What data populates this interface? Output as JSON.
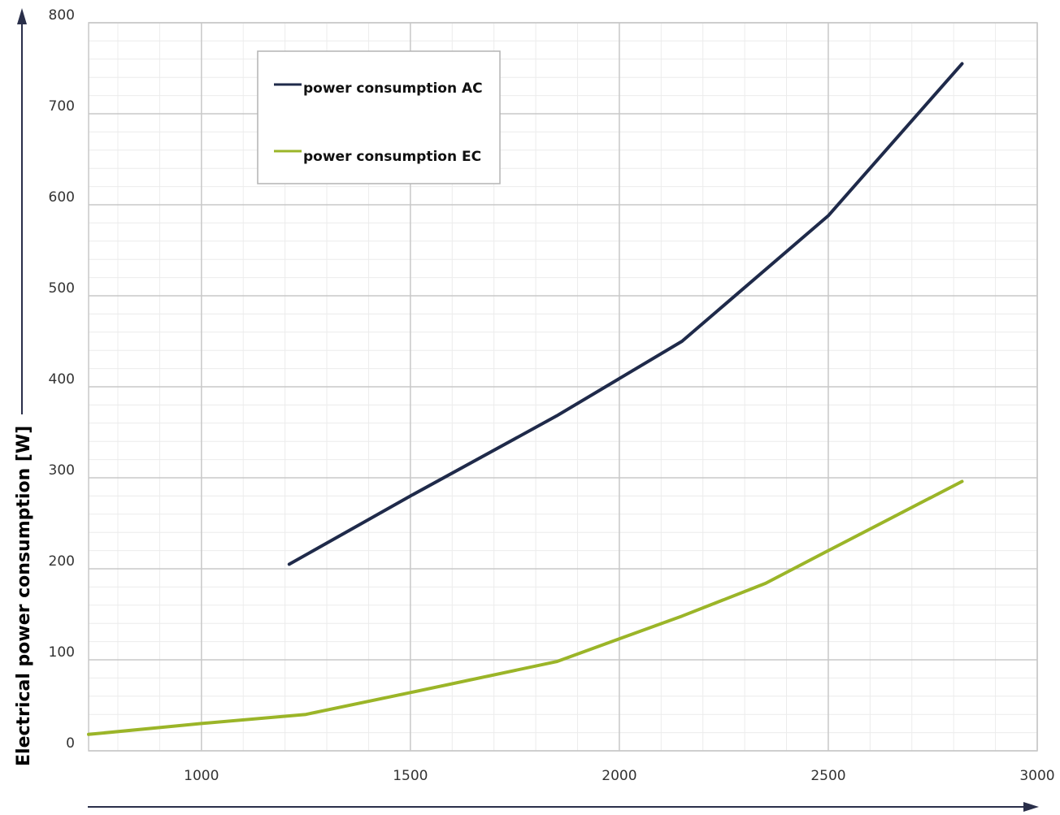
{
  "chart_data": {
    "type": "line",
    "title": "",
    "xlabel": "",
    "ylabel": "Electrical power consumption [W]",
    "xlim": [
      730,
      3000
    ],
    "ylim": [
      0,
      800
    ],
    "x_ticks": [
      1000,
      1500,
      2000,
      2500,
      3000
    ],
    "y_ticks": [
      0,
      100,
      200,
      300,
      400,
      500,
      600,
      700,
      800
    ],
    "x_minor_step": 100,
    "y_minor_step": 20,
    "grid": true,
    "legend_position": "top-left",
    "colors": {
      "AC": "#1f2a4a",
      "EC": "#9bb528"
    },
    "series": [
      {
        "name": "power consumption AC",
        "color": "#1f2a4a",
        "points": [
          [
            1210,
            205
          ],
          [
            1500,
            280
          ],
          [
            1850,
            368
          ],
          [
            2150,
            450
          ],
          [
            2500,
            588
          ],
          [
            2820,
            755
          ]
        ]
      },
      {
        "name": "power consumption EC",
        "color": "#9bb528",
        "points": [
          [
            730,
            18
          ],
          [
            1000,
            30
          ],
          [
            1250,
            40
          ],
          [
            1500,
            64
          ],
          [
            1850,
            98
          ],
          [
            2150,
            148
          ],
          [
            2350,
            184
          ],
          [
            2500,
            220
          ],
          [
            2820,
            296
          ]
        ]
      }
    ]
  }
}
